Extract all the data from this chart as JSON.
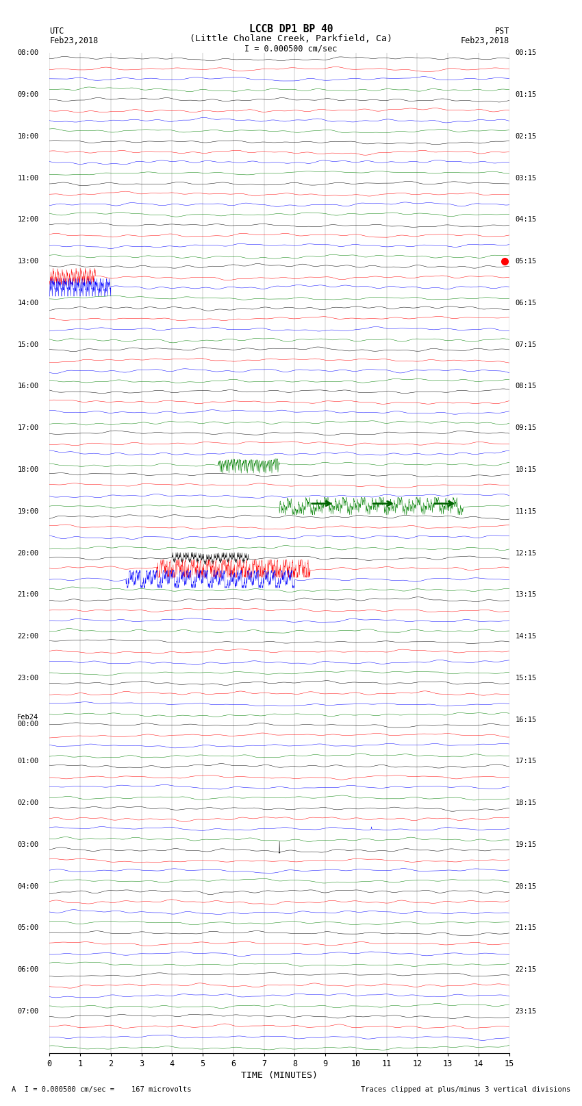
{
  "title_line1": "LCCB DP1 BP 40",
  "title_line2": "(Little Cholane Creek, Parkfield, Ca)",
  "scale_label": "I = 0.000500 cm/sec",
  "utc_label": "UTC",
  "pst_label": "PST",
  "date_left": "Feb23,2018",
  "date_right": "Feb23,2018",
  "footer_left": "A  I = 0.000500 cm/sec =    167 microvolts",
  "footer_right": "Traces clipped at plus/minus 3 vertical divisions",
  "xlabel": "TIME (MINUTES)",
  "xmin": 0,
  "xmax": 15,
  "xticks": [
    0,
    1,
    2,
    3,
    4,
    5,
    6,
    7,
    8,
    9,
    10,
    11,
    12,
    13,
    14,
    15
  ],
  "colors": [
    "black",
    "red",
    "blue",
    "green"
  ],
  "n_rows": 96,
  "amplitude": 0.28,
  "noise_amplitude": 0.09,
  "utc_times": [
    "08:00",
    "",
    "",
    "",
    "09:00",
    "",
    "",
    "",
    "10:00",
    "",
    "",
    "",
    "11:00",
    "",
    "",
    "",
    "12:00",
    "",
    "",
    "",
    "13:00",
    "",
    "",
    "",
    "14:00",
    "",
    "",
    "",
    "15:00",
    "",
    "",
    "",
    "16:00",
    "",
    "",
    "",
    "17:00",
    "",
    "",
    "",
    "18:00",
    "",
    "",
    "",
    "19:00",
    "",
    "",
    "",
    "20:00",
    "",
    "",
    "",
    "21:00",
    "",
    "",
    "",
    "22:00",
    "",
    "",
    "",
    "23:00",
    "",
    "",
    "",
    "Feb24",
    "00:00",
    "",
    "",
    "01:00",
    "",
    "",
    "",
    "02:00",
    "",
    "",
    "",
    "03:00",
    "",
    "",
    "",
    "04:00",
    "",
    "",
    "",
    "05:00",
    "",
    "",
    "",
    "06:00",
    "",
    "",
    "",
    "07:00",
    "",
    "",
    ""
  ],
  "pst_times": [
    "00:15",
    "",
    "",
    "",
    "01:15",
    "",
    "",
    "",
    "02:15",
    "",
    "",
    "",
    "03:15",
    "",
    "",
    "",
    "04:15",
    "",
    "",
    "",
    "05:15",
    "",
    "",
    "",
    "06:15",
    "",
    "",
    "",
    "07:15",
    "",
    "",
    "",
    "08:15",
    "",
    "",
    "",
    "09:15",
    "",
    "",
    "",
    "10:15",
    "",
    "",
    "",
    "11:15",
    "",
    "",
    "",
    "12:15",
    "",
    "",
    "",
    "13:15",
    "",
    "",
    "",
    "14:15",
    "",
    "",
    "",
    "15:15",
    "",
    "",
    "",
    "16:15",
    "",
    "",
    "",
    "17:15",
    "",
    "",
    "",
    "18:15",
    "",
    "",
    "",
    "19:15",
    "",
    "",
    "",
    "20:15",
    "",
    "",
    "",
    "21:15",
    "",
    "",
    "",
    "22:15",
    "",
    "",
    "",
    "23:15",
    "",
    "",
    ""
  ],
  "bg_color": "white",
  "trace_linewidth": 0.35,
  "grid_color": "#888888",
  "grid_linewidth": 0.3,
  "n_grid_lines": 15
}
